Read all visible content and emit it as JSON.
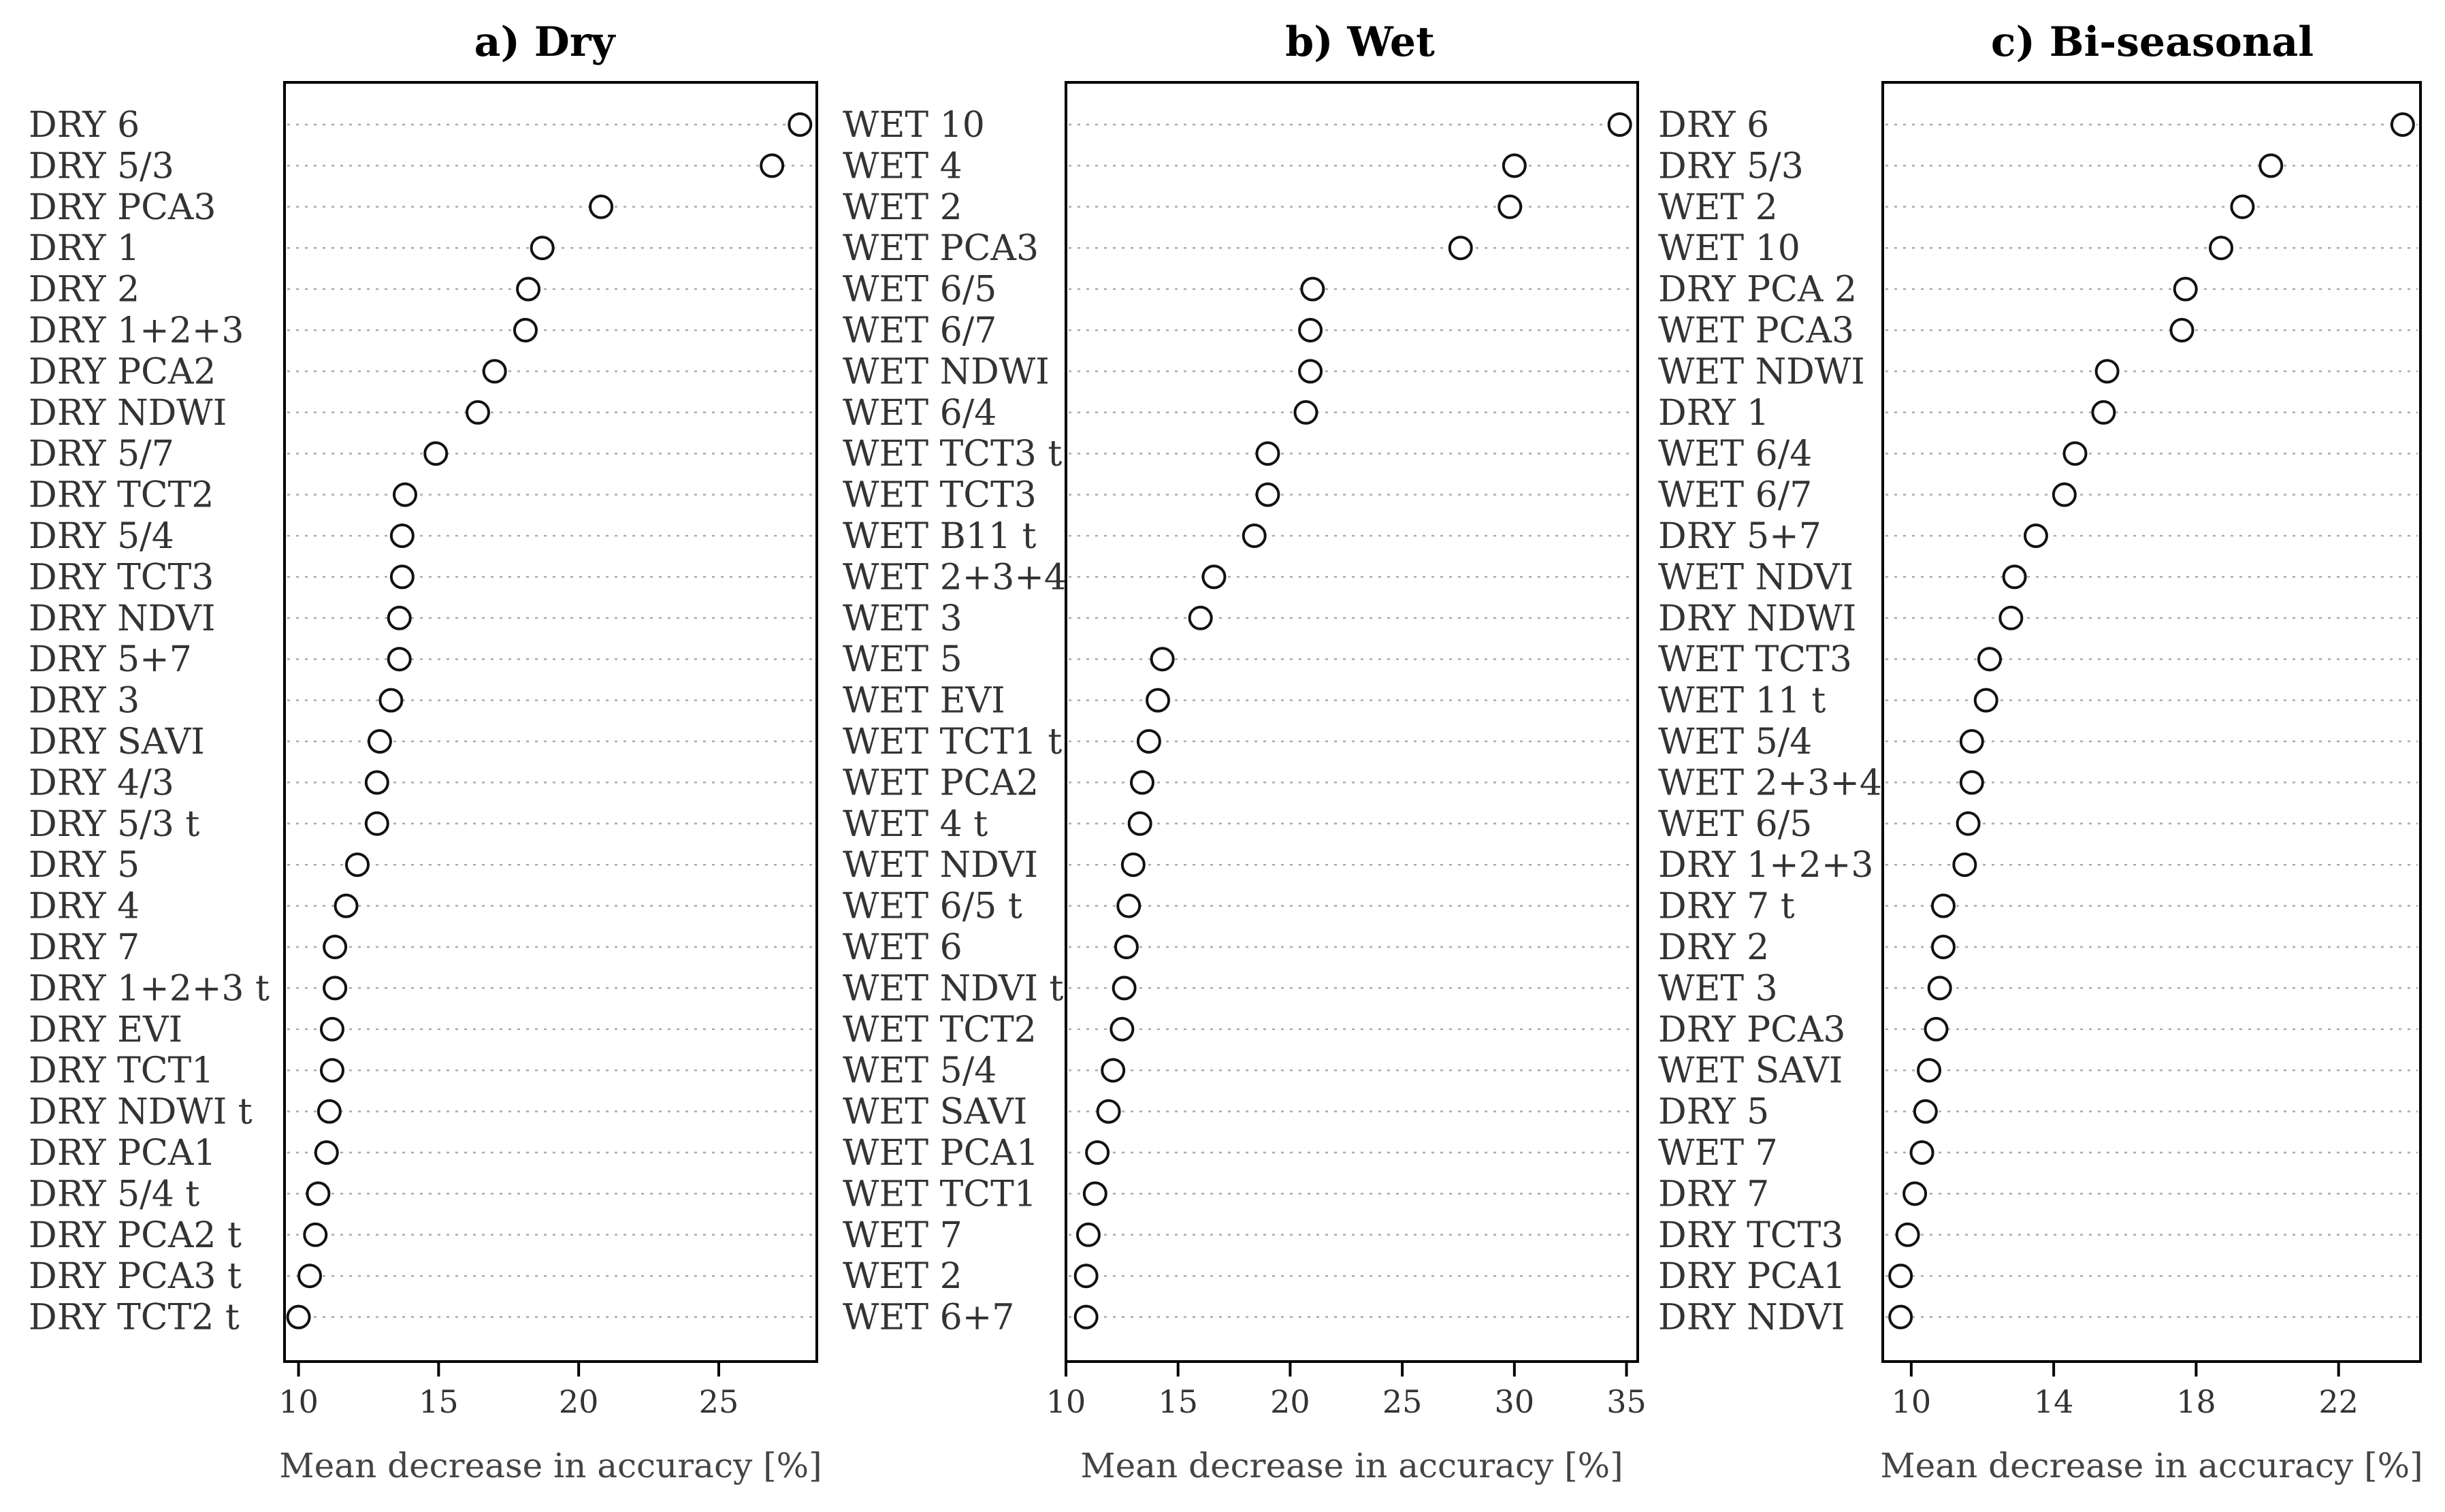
{
  "chart_data": [
    {
      "type": "scatter",
      "title": "a) Dry",
      "xlabel": "Mean decrease in accuracy [%]",
      "ylabel": "",
      "xlim": [
        9.5,
        28.5
      ],
      "xticks": [
        10,
        15,
        20,
        25
      ],
      "categories": [
        "DRY 6",
        "DRY 5/3",
        "DRY PCA3",
        "DRY 1",
        "DRY 2",
        "DRY 1+2+3",
        "DRY PCA2",
        "DRY NDWI",
        "DRY 5/7",
        "DRY TCT2",
        "DRY 5/4",
        "DRY TCT3",
        "DRY NDVI",
        "DRY 5+7",
        "DRY 3",
        "DRY SAVI",
        "DRY 4/3",
        "DRY 5/3 t",
        "DRY 5",
        "DRY 4",
        "DRY 7",
        "DRY 1+2+3 t",
        "DRY EVI",
        "DRY TCT1",
        "DRY NDWI t",
        "DRY PCA1",
        "DRY 5/4 t",
        "DRY PCA2 t",
        "DRY PCA3 t",
        "DRY TCT2 t"
      ],
      "values": [
        27.9,
        26.9,
        20.8,
        18.7,
        18.2,
        18.1,
        17.0,
        16.4,
        14.9,
        13.8,
        13.7,
        13.7,
        13.6,
        13.6,
        13.3,
        12.9,
        12.8,
        12.8,
        12.1,
        11.7,
        11.3,
        11.3,
        11.2,
        11.2,
        11.1,
        11.0,
        10.7,
        10.6,
        10.4,
        10.0
      ]
    },
    {
      "type": "scatter",
      "title": "b) Wet",
      "xlabel": "Mean decrease in accuracy [%]",
      "ylabel": "",
      "xlim": [
        10,
        35.5
      ],
      "xticks": [
        10,
        15,
        20,
        25,
        30,
        35
      ],
      "categories": [
        "WET 10",
        "WET 4",
        "WET 2",
        "WET PCA3",
        "WET 6/5",
        "WET 6/7",
        "WET NDWI",
        "WET 6/4",
        "WET TCT3 t",
        "WET TCT3",
        "WET B11 t",
        "WET 2+3+4",
        "WET 3",
        "WET 5",
        "WET EVI",
        "WET TCT1 t",
        "WET PCA2",
        "WET 4 t",
        "WET NDVI",
        "WET 6/5 t",
        "WET 6",
        "WET NDVI t",
        "WET TCT2",
        "WET 5/4",
        "WET SAVI",
        "WET PCA1",
        "WET TCT1",
        "WET 7",
        "WET 2",
        "WET 6+7"
      ],
      "values": [
        34.7,
        30.0,
        29.8,
        27.6,
        21.0,
        20.9,
        20.9,
        20.7,
        19.0,
        19.0,
        18.4,
        16.6,
        16.0,
        14.3,
        14.1,
        13.7,
        13.4,
        13.3,
        13.0,
        12.8,
        12.7,
        12.6,
        12.5,
        12.1,
        11.9,
        11.4,
        11.3,
        11.0,
        10.9,
        10.9
      ]
    },
    {
      "type": "scatter",
      "title": "c) Bi-seasonal",
      "xlabel": "Mean decrease in accuracy [%]",
      "ylabel": "",
      "xlim": [
        9.2,
        24.3
      ],
      "xticks": [
        10,
        14,
        18,
        22
      ],
      "categories": [
        "DRY 6",
        "DRY 5/3",
        "WET 2",
        "WET 10",
        "DRY PCA 2",
        "WET PCA3",
        "WET NDWI",
        "DRY 1",
        "WET 6/4",
        "WET 6/7",
        "DRY 5+7",
        "WET NDVI",
        "DRY NDWI",
        "WET TCT3",
        "WET 11 t",
        "WET 5/4",
        "WET 2+3+4",
        "WET 6/5",
        "DRY 1+2+3",
        "DRY 7 t",
        "DRY 2",
        "WET 3",
        "DRY PCA3",
        "WET SAVI",
        "DRY 5",
        "WET 7",
        "DRY 7",
        "DRY TCT3",
        "DRY PCA1",
        "DRY NDVI"
      ],
      "values": [
        23.8,
        20.1,
        19.3,
        18.7,
        17.7,
        17.6,
        15.5,
        15.4,
        14.6,
        14.3,
        13.5,
        12.9,
        12.8,
        12.2,
        12.1,
        11.7,
        11.7,
        11.6,
        11.5,
        10.9,
        10.9,
        10.8,
        10.7,
        10.5,
        10.4,
        10.3,
        10.1,
        9.9,
        9.7,
        9.7
      ]
    }
  ]
}
